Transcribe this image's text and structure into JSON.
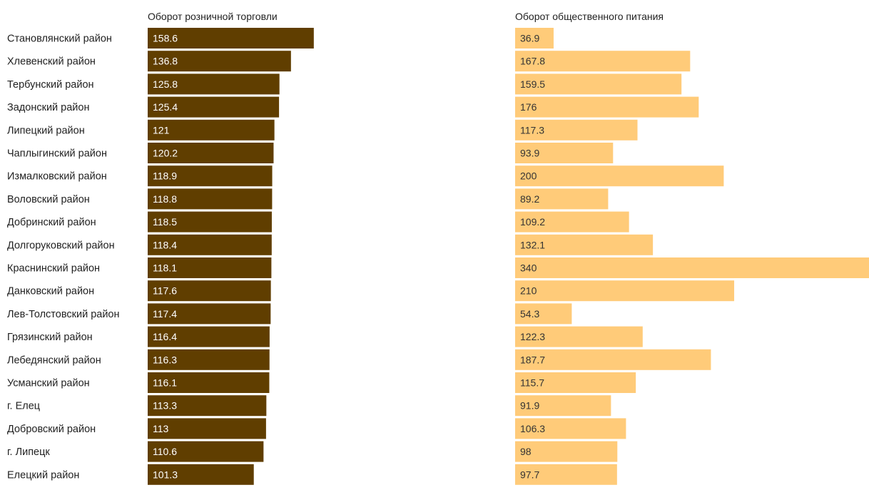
{
  "chart_data": {
    "type": "bar",
    "orientation": "horizontal",
    "categories": [
      "Становлянский район",
      "Хлевенский район",
      "Тербунский район",
      "Задонский район",
      "Липецкий район",
      "Чаплыгинский район",
      "Измалковский район",
      "Воловский район",
      "Добринский район",
      "Долгоруковский район",
      "Краснинский район",
      "Данковский район",
      "Лев-Толстовский район",
      "Грязинский район",
      "Лебедянский район",
      "Усманский район",
      "г. Елец",
      "Добровский район",
      "г. Липецк",
      "Елецкий район"
    ],
    "series": [
      {
        "name": "Оборот розничной торговли",
        "color": "#603E00",
        "label_color": "#FFFFFF",
        "values": [
          158.6,
          136.8,
          125.8,
          125.4,
          121,
          120.2,
          118.9,
          118.8,
          118.5,
          118.4,
          118.1,
          117.6,
          117.4,
          116.4,
          116.3,
          116.1,
          113.3,
          113,
          110.6,
          101.3
        ]
      },
      {
        "name": "Оборот общественного питания",
        "color": "#FFCB79",
        "label_color": "#333333",
        "values": [
          36.9,
          167.8,
          159.5,
          176,
          117.3,
          93.9,
          200,
          89.2,
          109.2,
          132.1,
          340,
          210,
          54.3,
          122.3,
          187.7,
          115.7,
          91.9,
          106.3,
          98,
          97.7
        ]
      }
    ],
    "xlim": [
      0,
      340
    ],
    "grid": false,
    "legend": "none"
  }
}
